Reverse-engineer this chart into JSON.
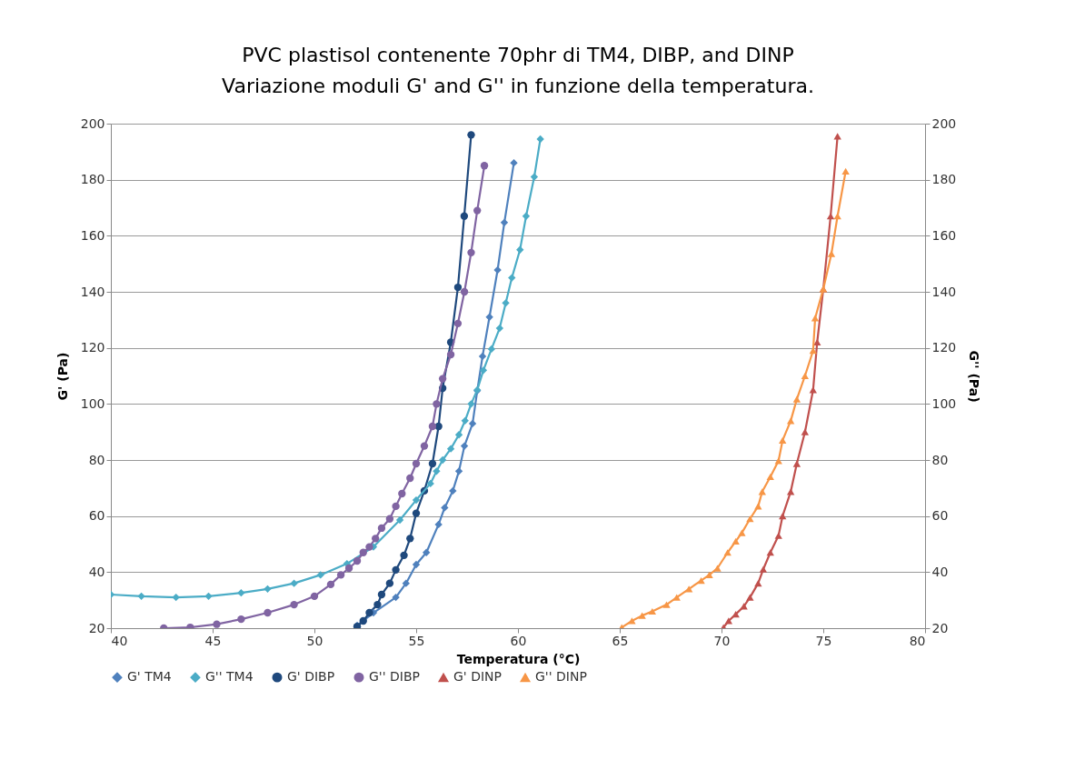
{
  "chart_data": {
    "type": "line",
    "title": "PVC plastisol contenente 70phr di TM4, DIBP, and DINP\nVariazione moduli  G' and G'' in funzione della temperatura.",
    "xlabel": "Temperatura (°C)",
    "ylabel": "G' (Pa)",
    "y2label": "G'' (Pa)",
    "xlim": [
      40,
      80
    ],
    "xticks": [
      40,
      45,
      50,
      55,
      60,
      65,
      70,
      75,
      80
    ],
    "ylim": [
      20,
      200
    ],
    "yticks": [
      20,
      40,
      60,
      80,
      100,
      120,
      140,
      160,
      180,
      200
    ],
    "y2lim": [
      20,
      200
    ],
    "y2ticks": [
      20,
      40,
      60,
      80,
      100,
      120,
      140,
      160,
      180,
      200
    ],
    "grid": "y",
    "legend": "bottom",
    "series": [
      {
        "name": "G' TM4",
        "color": "#4f81bd",
        "marker": "diamond",
        "x": [
          52.1,
          52.9,
          54.0,
          54.5,
          55.0,
          55.5,
          56.1,
          56.4,
          56.8,
          57.1,
          57.37,
          57.77,
          58.0,
          58.26,
          58.6,
          59.0,
          59.33,
          59.8
        ],
        "values": [
          21,
          25.5,
          31,
          36,
          42.7,
          47,
          57,
          63,
          69,
          76,
          85,
          93,
          104.7,
          117,
          131,
          147.8,
          164.7,
          186
        ]
      },
      {
        "name": "G'' TM4",
        "color": "#4bacc6",
        "marker": "diamond",
        "axis": "y2",
        "x": [
          40,
          41.5,
          43.2,
          44.8,
          46.4,
          47.7,
          49.0,
          50.3,
          51.6,
          52.9,
          54.2,
          55.0,
          55.7,
          56.0,
          56.3,
          56.7,
          57.1,
          57.4,
          57.7,
          58.0,
          58.3,
          58.7,
          59.1,
          59.4,
          59.7,
          60.1,
          60.4,
          60.8,
          61.1
        ],
        "values": [
          32,
          31.4,
          31,
          31.4,
          32.6,
          34,
          36,
          39,
          43,
          49,
          58.6,
          65.7,
          71.6,
          76,
          80,
          84,
          89,
          94,
          100,
          105,
          112,
          119.6,
          127,
          136,
          145,
          155,
          167,
          181,
          194.5
        ]
      },
      {
        "name": "G' DIBP",
        "color": "#1f497d",
        "marker": "circle",
        "x": [
          52.1,
          52.4,
          52.7,
          53.1,
          53.3,
          53.7,
          54.0,
          54.4,
          54.7,
          55.0,
          55.4,
          55.8,
          56.1,
          56.3,
          56.7,
          57.05,
          57.36,
          57.7
        ],
        "values": [
          20.6,
          22.6,
          25.5,
          28.4,
          32,
          36,
          40.8,
          46,
          52,
          61,
          69,
          78.7,
          92,
          105.6,
          122,
          141.6,
          167,
          196
        ]
      },
      {
        "name": "G'' DIBP",
        "color": "#8064a2",
        "marker": "circle",
        "axis": "y2",
        "x": [
          42.6,
          43.9,
          45.2,
          46.4,
          47.7,
          49.0,
          50.0,
          50.8,
          51.3,
          51.7,
          52.1,
          52.4,
          52.7,
          53.0,
          53.3,
          53.7,
          54.0,
          54.3,
          54.7,
          55.0,
          55.4,
          55.8,
          56.0,
          56.3,
          56.7,
          57.05,
          57.37,
          57.7,
          58.0,
          58.35
        ],
        "values": [
          20,
          20.3,
          21.4,
          23.2,
          25.5,
          28.4,
          31.4,
          35.6,
          39,
          41.4,
          44,
          47,
          49,
          52,
          55.7,
          59,
          63.5,
          68,
          73.5,
          78.7,
          85,
          92,
          100,
          109,
          117.6,
          128.7,
          140,
          154,
          169,
          185
        ]
      },
      {
        "name": "G' DINP",
        "color": "#c0504d",
        "marker": "triangle",
        "x": [
          70.1,
          70.35,
          70.7,
          71.1,
          71.4,
          71.8,
          72.05,
          72.4,
          72.8,
          73.0,
          73.4,
          73.7,
          74.1,
          74.5,
          74.7,
          75.0,
          75.36,
          75.7
        ],
        "values": [
          20.3,
          22.6,
          25,
          27.8,
          31,
          36,
          41,
          47,
          53,
          60,
          68.7,
          78.7,
          90,
          105,
          122,
          141,
          167,
          195.5
        ]
      },
      {
        "name": "G'' DINP",
        "color": "#f79646",
        "marker": "triangle",
        "axis": "y2",
        "x": [
          65.1,
          65.6,
          66.1,
          66.6,
          67.3,
          67.8,
          68.4,
          69.0,
          69.4,
          69.8,
          70.3,
          70.7,
          71.0,
          71.4,
          71.8,
          72.0,
          72.4,
          72.8,
          73.0,
          73.4,
          73.7,
          74.1,
          74.5,
          74.6,
          75.0,
          75.4,
          75.7,
          76.1
        ],
        "values": [
          20.3,
          22.6,
          24.5,
          26,
          28.4,
          31,
          34,
          37,
          39,
          41.4,
          47,
          51,
          54,
          59,
          63.5,
          68.7,
          74,
          79.7,
          87,
          94,
          101.7,
          110,
          119,
          130.6,
          141,
          153.6,
          167,
          183
        ]
      }
    ]
  }
}
